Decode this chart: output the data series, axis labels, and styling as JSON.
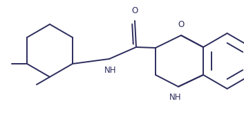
{
  "background_color": "#ffffff",
  "line_color": "#2d2d5e",
  "line_width": 1.4,
  "font_size": 8.5,
  "figsize": [
    3.53,
    1.63
  ],
  "dpi": 100,
  "xlim": [
    0,
    353
  ],
  "ylim": [
    0,
    163
  ]
}
